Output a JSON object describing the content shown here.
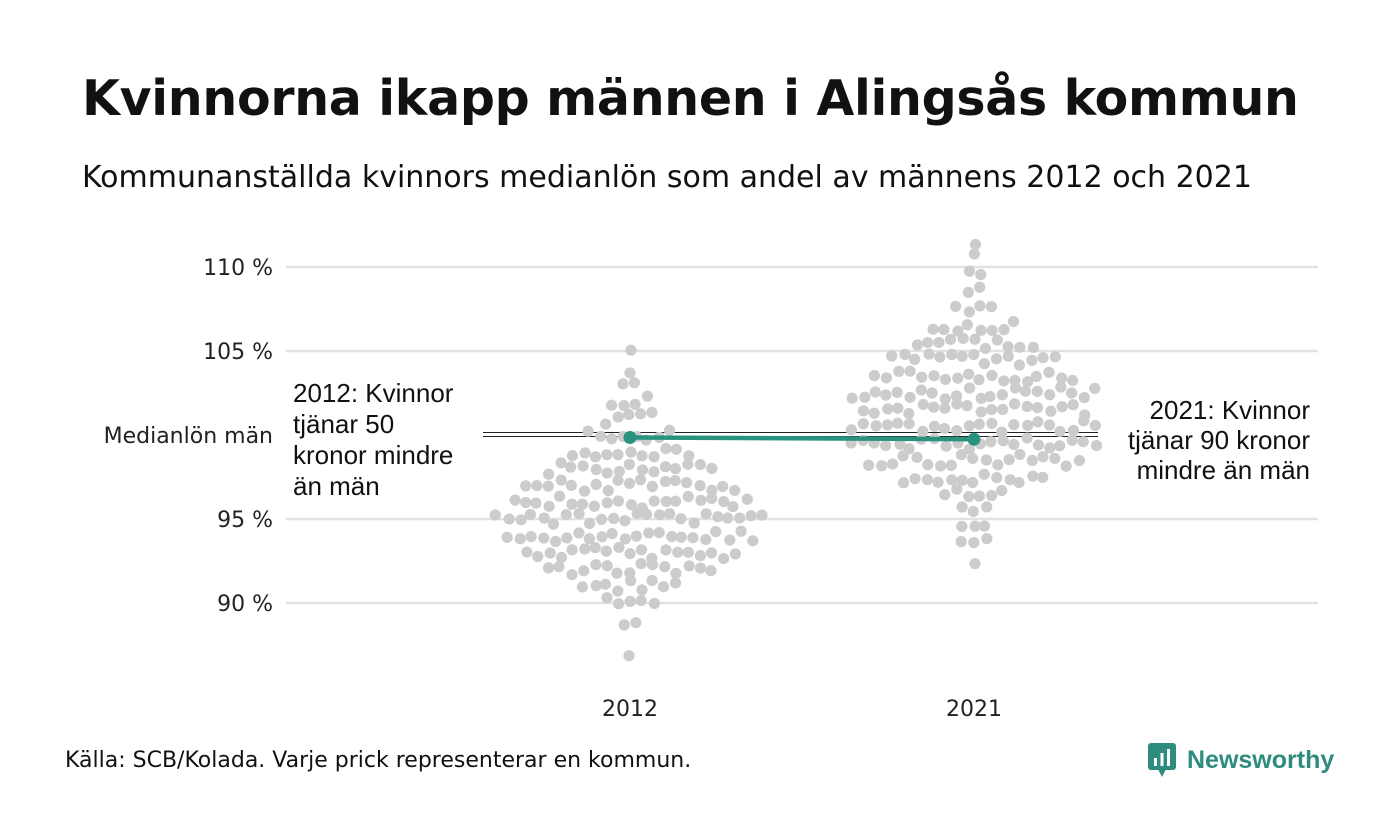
{
  "title": "Kvinnorna ikapp männen i Alingsås kommun",
  "subtitle": "Kommunanställda kvinnors medianlön som andel av männens 2012 och 2021",
  "source": "Källa: SCB/Kolada. Varje prick representerar en kommun.",
  "brand": "Newsworthy",
  "colors": {
    "highlight": "#2a9380",
    "dots": "#cccccc",
    "grid": "#e2e2e2"
  },
  "chart_data": {
    "type": "scatter",
    "categories": [
      "2012",
      "2021"
    ],
    "y_ticks": [
      {
        "value": 110,
        "label": "110 %"
      },
      {
        "value": 105,
        "label": "105 %"
      },
      {
        "value": 100,
        "label": "Medianlön män"
      },
      {
        "value": 95,
        "label": "95 %"
      },
      {
        "value": 90,
        "label": "90 %"
      }
    ],
    "ylim": [
      86,
      111.5
    ],
    "highlight": {
      "2012": 99.85,
      "2021": 99.75
    },
    "distribution": {
      "2012": [
        {
          "y": 86.5,
          "n": 1
        },
        {
          "y": 89,
          "n": 2
        },
        {
          "y": 90,
          "n": 5
        },
        {
          "y": 91,
          "n": 9
        },
        {
          "y": 92,
          "n": 15
        },
        {
          "y": 93,
          "n": 19
        },
        {
          "y": 94,
          "n": 22
        },
        {
          "y": 95,
          "n": 24
        },
        {
          "y": 96,
          "n": 21
        },
        {
          "y": 97,
          "n": 19
        },
        {
          "y": 98,
          "n": 15
        },
        {
          "y": 99,
          "n": 11
        },
        {
          "y": 100,
          "n": 8
        },
        {
          "y": 101,
          "n": 5
        },
        {
          "y": 102,
          "n": 4
        },
        {
          "y": 103,
          "n": 2
        },
        {
          "y": 104,
          "n": 1
        },
        {
          "y": 105,
          "n": 1
        }
      ],
      "2021": [
        {
          "y": 92.5,
          "n": 1
        },
        {
          "y": 93.5,
          "n": 3
        },
        {
          "y": 94.5,
          "n": 3
        },
        {
          "y": 95.5,
          "n": 3
        },
        {
          "y": 96.5,
          "n": 6
        },
        {
          "y": 97.5,
          "n": 13
        },
        {
          "y": 98.5,
          "n": 19
        },
        {
          "y": 99.5,
          "n": 22
        },
        {
          "y": 100.5,
          "n": 22
        },
        {
          "y": 101.5,
          "n": 20
        },
        {
          "y": 102.5,
          "n": 22
        },
        {
          "y": 103.5,
          "n": 18
        },
        {
          "y": 104.5,
          "n": 15
        },
        {
          "y": 105.5,
          "n": 11
        },
        {
          "y": 106.5,
          "n": 8
        },
        {
          "y": 107.5,
          "n": 4
        },
        {
          "y": 108.5,
          "n": 2
        },
        {
          "y": 109.5,
          "n": 2
        },
        {
          "y": 110.5,
          "n": 1
        },
        {
          "y": 111.2,
          "n": 1
        }
      ]
    },
    "annotations": {
      "2012": [
        "2012: Kvinnor",
        "tjänar 50",
        "kronor mindre",
        "än män"
      ],
      "2021": [
        "2021: Kvinnor",
        "tjänar 90 kronor",
        "mindre än män"
      ]
    }
  }
}
